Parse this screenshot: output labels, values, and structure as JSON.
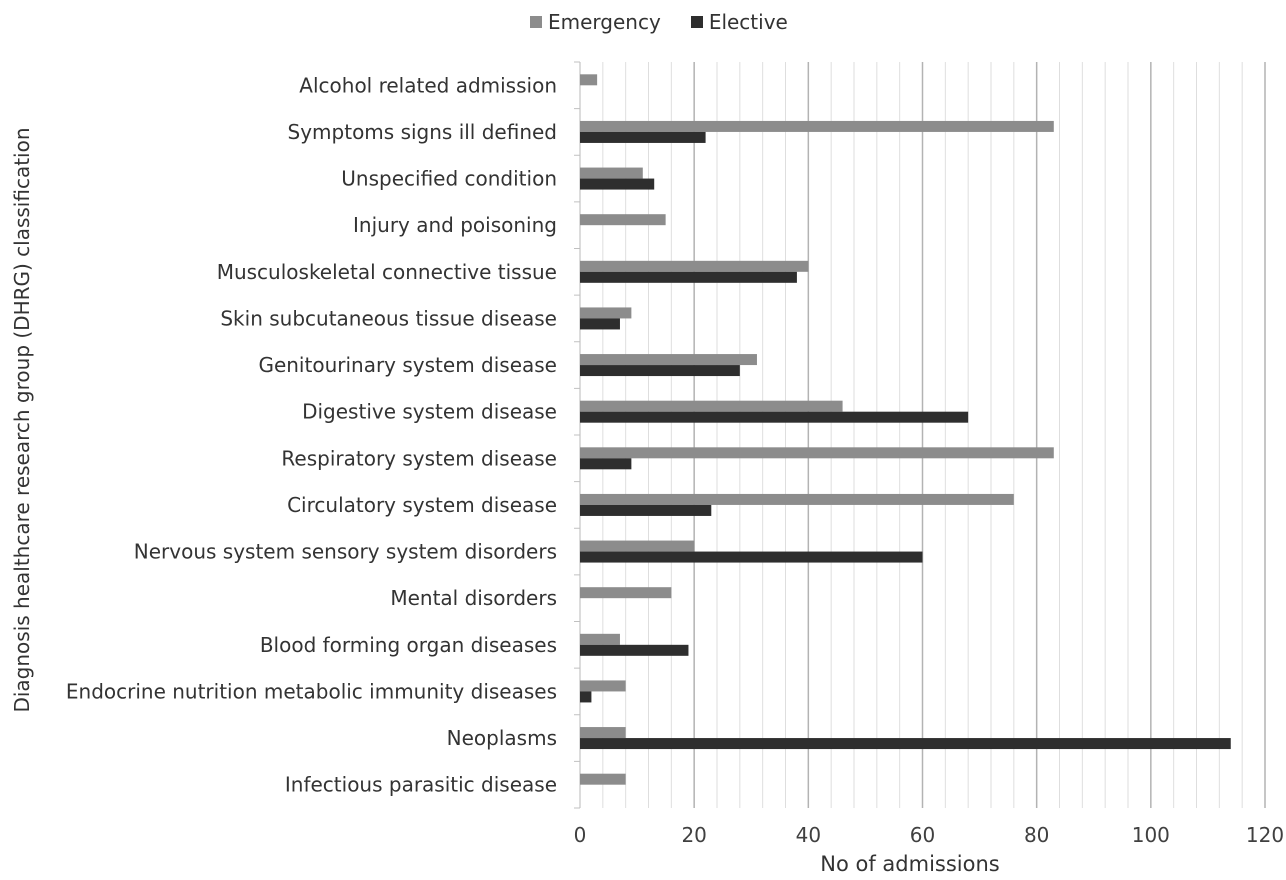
{
  "chart_data": {
    "type": "bar",
    "orientation": "horizontal",
    "xlabel": "No of admissions",
    "ylabel": "Diagnosis healthcare research group (DHRG) classification",
    "xlim": [
      0,
      120
    ],
    "x_ticks": [
      "0",
      "20",
      "40",
      "60",
      "80",
      "100",
      "120"
    ],
    "grid": true,
    "legend_position": "top",
    "categories": [
      "Alcohol related admission",
      "Symptoms signs ill defined",
      "Unspecified condition",
      "Injury and poisoning",
      "Musculoskeletal connective tissue",
      "Skin subcutaneous tissue disease",
      "Genitourinary system disease",
      "Digestive system disease",
      "Respiratory system disease",
      "Circulatory system disease",
      "Nervous system sensory system disorders",
      "Mental disorders",
      "Blood forming organ diseases",
      "Endocrine nutrition metabolic immunity diseases",
      "Neoplasms",
      "Infectious parasitic disease"
    ],
    "series": [
      {
        "name": "Emergency",
        "color": "#8c8c8c",
        "values": [
          3,
          83,
          11,
          15,
          40,
          9,
          31,
          46,
          83,
          76,
          20,
          16,
          7,
          8,
          8,
          8
        ]
      },
      {
        "name": "Elective",
        "color": "#2e2e2e",
        "values": [
          0,
          22,
          13,
          0,
          38,
          7,
          28,
          68,
          9,
          23,
          60,
          0,
          19,
          2,
          114,
          0
        ]
      }
    ]
  }
}
